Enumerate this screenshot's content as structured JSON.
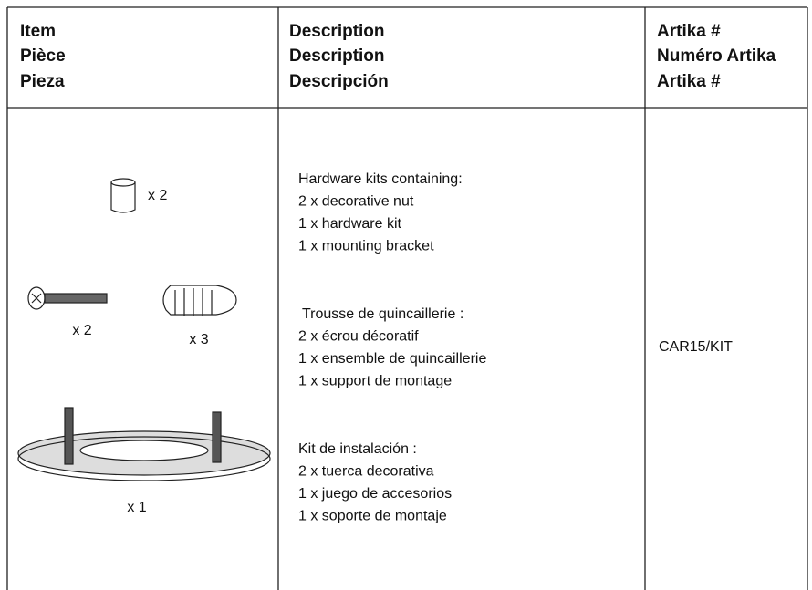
{
  "table": {
    "header": {
      "item": [
        "Item",
        "Pièce",
        "Pieza"
      ],
      "description": [
        "Description",
        "Description",
        "Descripción"
      ],
      "artika": [
        "Artika #",
        "Numéro Artika",
        "Artika #"
      ]
    },
    "row": {
      "item": {
        "quantities": [
          "x 2",
          "x 2",
          "x 3",
          "x 1"
        ]
      },
      "description": [
        [
          "Hardware kits containing:",
          "2 x decorative nut",
          "1 x hardware kit",
          "1 x mounting bracket"
        ],
        [
          "Trousse de quincaillerie :",
          "2 x écrou décoratif",
          "1 x ensemble de quincaillerie",
          "1 x support de montage"
        ],
        [
          "Kit de instalación :",
          "2 x tuerca decorativa",
          "1 x juego de accesorios",
          "1 x soporte de montaje"
        ]
      ],
      "artika": "CAR15/KIT"
    }
  }
}
